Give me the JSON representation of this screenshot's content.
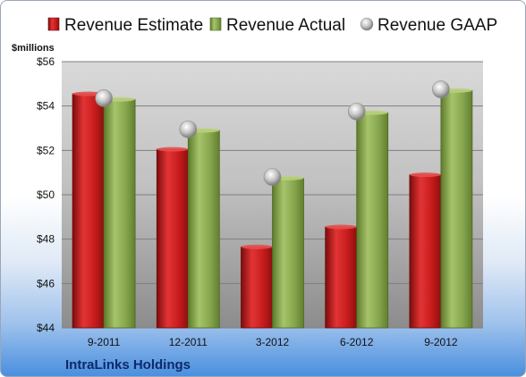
{
  "chart_data": {
    "type": "bar",
    "title": "",
    "company": "IntraLinks Holdings",
    "ylabel": "$millions",
    "xlabel": "",
    "categories": [
      "9-2011",
      "12-2011",
      "3-2012",
      "6-2012",
      "9-2012"
    ],
    "series": [
      {
        "name": "Revenue Estimate",
        "type": "bar",
        "color": "#cc1f1f",
        "values": [
          54.55,
          52.05,
          47.65,
          48.55,
          50.9
        ]
      },
      {
        "name": "Revenue Actual",
        "type": "bar",
        "color": "#8aaa4e",
        "values": [
          54.3,
          52.9,
          50.75,
          53.7,
          54.7
        ]
      },
      {
        "name": "Revenue GAAP",
        "type": "scatter",
        "color": "#b8b8b8",
        "values": [
          54.35,
          52.95,
          50.8,
          53.75,
          54.75
        ]
      }
    ],
    "ylim": [
      44,
      56
    ],
    "yticks": [
      44,
      46,
      48,
      50,
      52,
      54,
      56
    ],
    "ytick_labels": [
      "$44",
      "$46",
      "$48",
      "$50",
      "$52",
      "$54",
      "$56"
    ],
    "grid": true,
    "legend_position": "top"
  }
}
